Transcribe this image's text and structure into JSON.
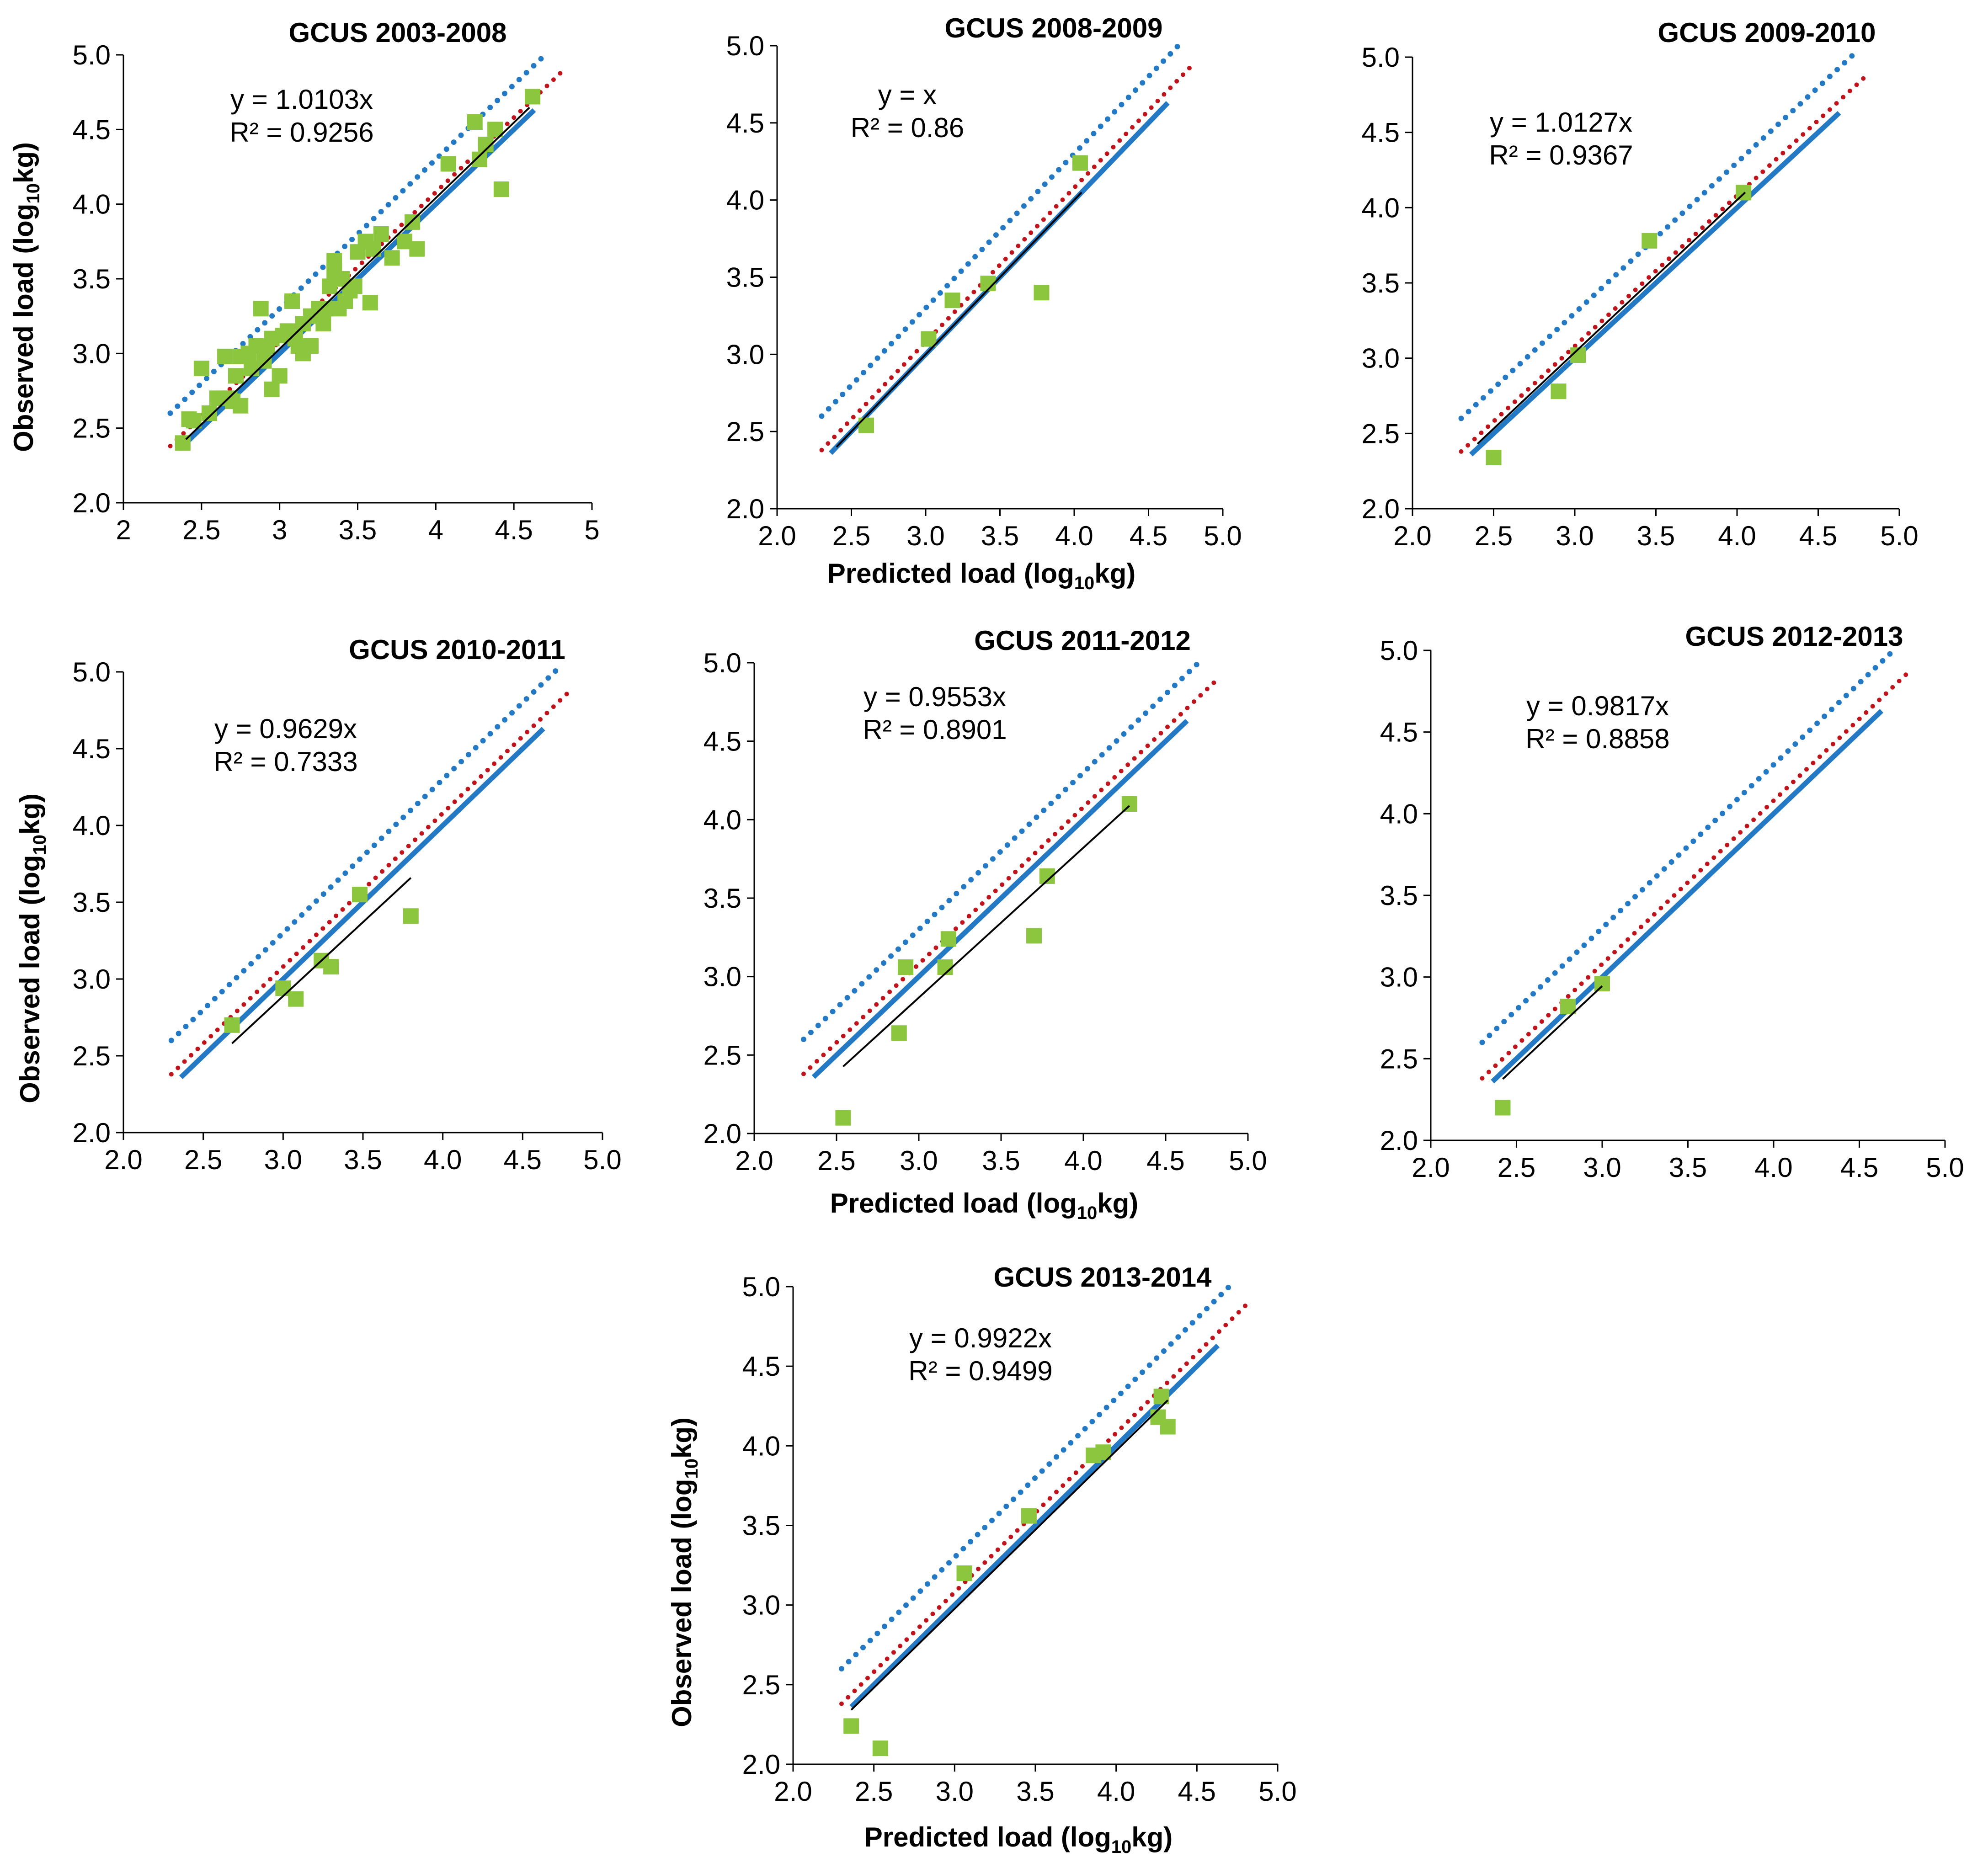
{
  "shared_labels": {
    "xlabel_main": "Predicted load (log",
    "xlabel_sub": "10",
    "xlabel_tail": "kg)",
    "ylabel_main": "Observed load (log",
    "ylabel_sub": "10",
    "ylabel_tail": "kg)"
  },
  "colors": {
    "one_to_one_line": "#2379c3",
    "upper_bound_dotted": "#2379c3",
    "lower_bound_dotted": "#c0141c",
    "fit_line": "#000000",
    "points": "#8cc63f"
  },
  "chart_data": [
    {
      "type": "scatter",
      "title": "GCUS 2003-2008",
      "equation": "y = 1.0103x",
      "r_squared": "R² = 0.9256",
      "xlim": [
        2,
        5
      ],
      "ylim": [
        2.0,
        5.0
      ],
      "xticks": [
        "2",
        "2.5",
        "3",
        "3.5",
        "4",
        "4.5",
        "5"
      ],
      "yticks": [
        "2.0",
        "2.5",
        "3.0",
        "3.5",
        "4.0",
        "4.5",
        "5.0"
      ],
      "show_ylabel": true,
      "show_xlabel": false,
      "fit_slope": 1.0103,
      "fit_range": [
        2.4,
        4.6
      ],
      "points": [
        [
          2.38,
          2.4
        ],
        [
          2.42,
          2.56
        ],
        [
          2.45,
          2.55
        ],
        [
          2.5,
          2.9
        ],
        [
          2.55,
          2.6
        ],
        [
          2.6,
          2.7
        ],
        [
          2.65,
          2.98
        ],
        [
          2.68,
          2.7
        ],
        [
          2.7,
          2.68
        ],
        [
          2.72,
          2.85
        ],
        [
          2.75,
          2.65
        ],
        [
          2.75,
          2.98
        ],
        [
          2.8,
          3.0
        ],
        [
          2.82,
          2.9
        ],
        [
          2.85,
          3.05
        ],
        [
          2.88,
          3.3
        ],
        [
          2.9,
          2.95
        ],
        [
          2.92,
          3.05
        ],
        [
          2.95,
          2.76
        ],
        [
          2.95,
          3.1
        ],
        [
          3.0,
          2.85
        ],
        [
          3.02,
          3.12
        ],
        [
          3.05,
          3.15
        ],
        [
          3.08,
          3.35
        ],
        [
          3.1,
          3.1
        ],
        [
          3.12,
          3.05
        ],
        [
          3.15,
          3.0
        ],
        [
          3.15,
          3.2
        ],
        [
          3.2,
          3.25
        ],
        [
          3.2,
          3.05
        ],
        [
          3.25,
          3.3
        ],
        [
          3.28,
          3.2
        ],
        [
          3.3,
          3.3
        ],
        [
          3.32,
          3.45
        ],
        [
          3.35,
          3.55
        ],
        [
          3.35,
          3.62
        ],
        [
          3.38,
          3.3
        ],
        [
          3.4,
          3.5
        ],
        [
          3.42,
          3.35
        ],
        [
          3.45,
          3.42
        ],
        [
          3.48,
          3.45
        ],
        [
          3.5,
          3.68
        ],
        [
          3.55,
          3.75
        ],
        [
          3.58,
          3.34
        ],
        [
          3.6,
          3.7
        ],
        [
          3.65,
          3.8
        ],
        [
          3.72,
          3.64
        ],
        [
          3.8,
          3.75
        ],
        [
          3.85,
          3.88
        ],
        [
          3.88,
          3.7
        ],
        [
          4.08,
          4.27
        ],
        [
          4.25,
          4.55
        ],
        [
          4.28,
          4.3
        ],
        [
          4.32,
          4.4
        ],
        [
          4.38,
          4.5
        ],
        [
          4.42,
          4.1
        ],
        [
          4.62,
          4.72
        ]
      ]
    },
    {
      "type": "scatter",
      "title": "GCUS 2008-2009",
      "equation": "y = x",
      "r_squared": "R² = 0.86",
      "xlim": [
        2.0,
        5.0
      ],
      "ylim": [
        2.0,
        5.0
      ],
      "xticks": [
        "2.0",
        "2.5",
        "3.0",
        "3.5",
        "4.0",
        "4.5",
        "5.0"
      ],
      "yticks": [
        "2.0",
        "2.5",
        "3.0",
        "3.5",
        "4.0",
        "4.5",
        "5.0"
      ],
      "show_ylabel": false,
      "show_xlabel": true,
      "fit_slope": 1.0,
      "fit_range": [
        2.4,
        4.05
      ],
      "points": [
        [
          2.6,
          2.54
        ],
        [
          3.02,
          3.1
        ],
        [
          3.18,
          3.35
        ],
        [
          3.42,
          3.46
        ],
        [
          3.78,
          3.4
        ],
        [
          4.04,
          4.24
        ]
      ]
    },
    {
      "type": "scatter",
      "title": "GCUS 2009-2010",
      "equation": "y = 1.0127x",
      "r_squared": "R² = 0.9367",
      "xlim": [
        2.0,
        5.0
      ],
      "ylim": [
        2.0,
        5.0
      ],
      "xticks": [
        "2.0",
        "2.5",
        "3.0",
        "3.5",
        "4.0",
        "4.5",
        "5.0"
      ],
      "yticks": [
        "2.0",
        "2.5",
        "3.0",
        "3.5",
        "4.0",
        "4.5",
        "5.0"
      ],
      "show_ylabel": false,
      "show_xlabel": false,
      "fit_slope": 1.0127,
      "fit_range": [
        2.4,
        4.05
      ],
      "points": [
        [
          2.5,
          2.34
        ],
        [
          2.9,
          2.78
        ],
        [
          3.02,
          3.02
        ],
        [
          3.46,
          3.78
        ],
        [
          4.04,
          4.1
        ]
      ]
    },
    {
      "type": "scatter",
      "title": "GCUS 2010-2011",
      "equation": "y = 0.9629x",
      "r_squared": "R² = 0.7333",
      "xlim": [
        2.0,
        5.0
      ],
      "ylim": [
        2.0,
        5.0
      ],
      "xticks": [
        "2.0",
        "2.5",
        "3.0",
        "3.5",
        "4.0",
        "4.5",
        "5.0"
      ],
      "yticks": [
        "2.0",
        "2.5",
        "3.0",
        "3.5",
        "4.0",
        "4.5",
        "5.0"
      ],
      "show_ylabel": true,
      "show_xlabel": false,
      "fit_slope": 0.9629,
      "fit_range": [
        2.68,
        3.8
      ],
      "points": [
        [
          2.68,
          2.7
        ],
        [
          3.0,
          2.94
        ],
        [
          3.08,
          2.87
        ],
        [
          3.24,
          3.12
        ],
        [
          3.3,
          3.08
        ],
        [
          3.48,
          3.55
        ],
        [
          3.8,
          3.41
        ]
      ]
    },
    {
      "type": "scatter",
      "title": "GCUS 2011-2012",
      "equation": "y = 0.9553x",
      "r_squared": "R² = 0.8901",
      "xlim": [
        2.0,
        5.0
      ],
      "ylim": [
        2.0,
        5.0
      ],
      "xticks": [
        "2.0",
        "2.5",
        "3.0",
        "3.5",
        "4.0",
        "4.5",
        "5.0"
      ],
      "yticks": [
        "2.0",
        "2.5",
        "3.0",
        "3.5",
        "4.0",
        "4.5",
        "5.0"
      ],
      "show_ylabel": false,
      "show_xlabel": true,
      "fit_slope": 0.9553,
      "fit_range": [
        2.54,
        4.28
      ],
      "points": [
        [
          2.54,
          2.1
        ],
        [
          2.88,
          2.64
        ],
        [
          2.92,
          3.06
        ],
        [
          3.16,
          3.06
        ],
        [
          3.18,
          3.24
        ],
        [
          3.7,
          3.26
        ],
        [
          3.78,
          3.64
        ],
        [
          4.28,
          4.1
        ]
      ]
    },
    {
      "type": "scatter",
      "title": "GCUS 2012-2013",
      "equation": "y = 0.9817x",
      "r_squared": "R² = 0.8858",
      "xlim": [
        2.0,
        5.0
      ],
      "ylim": [
        2.0,
        5.0
      ],
      "xticks": [
        "2.0",
        "2.5",
        "3.0",
        "3.5",
        "4.0",
        "4.5",
        "5.0"
      ],
      "yticks": [
        "2.0",
        "2.5",
        "3.0",
        "3.5",
        "4.0",
        "4.5",
        "5.0"
      ],
      "show_ylabel": false,
      "show_xlabel": false,
      "fit_slope": 0.9817,
      "fit_range": [
        2.42,
        3.0
      ],
      "points": [
        [
          2.42,
          2.2
        ],
        [
          2.8,
          2.82
        ],
        [
          3.0,
          2.96
        ]
      ]
    },
    {
      "type": "scatter",
      "title": "GCUS 2013-2014",
      "equation": "y = 0.9922x",
      "r_squared": "R² = 0.9499",
      "xlim": [
        2.0,
        5.0
      ],
      "ylim": [
        2.0,
        5.0
      ],
      "xticks": [
        "2.0",
        "2.5",
        "3.0",
        "3.5",
        "4.0",
        "4.5",
        "5.0"
      ],
      "yticks": [
        "2.0",
        "2.5",
        "3.0",
        "3.5",
        "4.0",
        "4.5",
        "5.0"
      ],
      "show_ylabel": true,
      "show_xlabel": true,
      "fit_slope": 0.9922,
      "fit_range": [
        2.36,
        4.32
      ],
      "points": [
        [
          2.36,
          2.24
        ],
        [
          2.54,
          2.1
        ],
        [
          3.06,
          3.2
        ],
        [
          3.46,
          3.56
        ],
        [
          3.86,
          3.94
        ],
        [
          3.92,
          3.96
        ],
        [
          4.26,
          4.18
        ],
        [
          4.28,
          4.31
        ],
        [
          4.32,
          4.12
        ]
      ]
    }
  ]
}
